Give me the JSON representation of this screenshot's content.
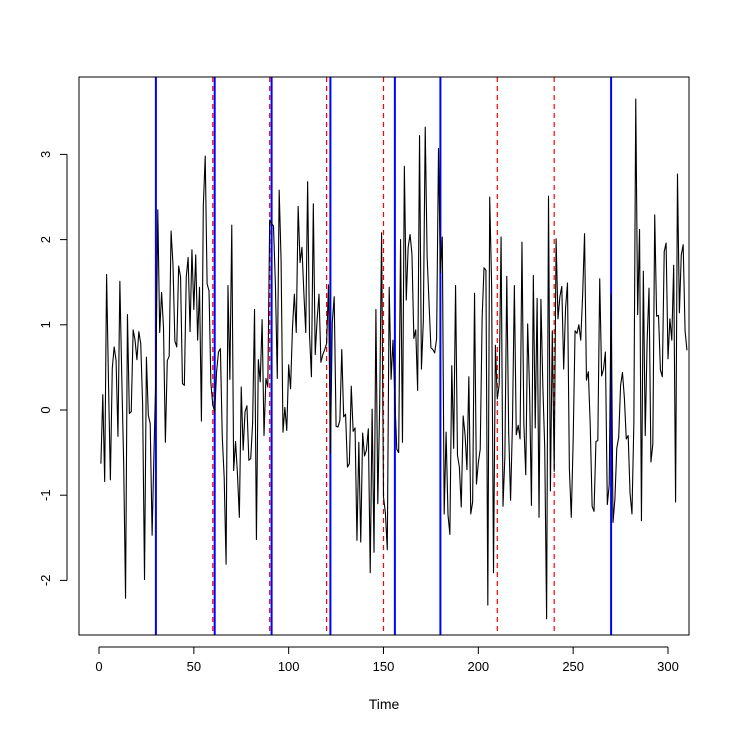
{
  "chart_data": {
    "type": "line",
    "title": "",
    "xlabel": "Time",
    "ylabel": "",
    "xlim": [
      0,
      300
    ],
    "ylim": [
      -2.5,
      3.5
    ],
    "grid": false,
    "x_ticks": [
      0,
      50,
      100,
      150,
      200,
      250,
      300
    ],
    "x_tick_labels": [
      "0",
      "50",
      "100",
      "150",
      "200",
      "250",
      "300"
    ],
    "y_ticks": [
      -2,
      -1,
      0,
      1,
      2,
      3
    ],
    "y_tick_labels": [
      "-2",
      "-1",
      "0",
      "1",
      "2",
      "3"
    ],
    "series": [
      {
        "color": "#000000",
        "x_start": 1,
        "x_step": 1,
        "values": [
          -0.63,
          0.18,
          -0.84,
          1.59,
          0.33,
          -0.82,
          0.49,
          0.74,
          0.58,
          -0.31,
          1.51,
          0.39,
          -0.62,
          -2.21,
          1.12,
          -0.04,
          -0.02,
          0.94,
          0.82,
          0.59,
          0.92,
          0.78,
          0.07,
          -1.99,
          0.62,
          -0.06,
          -0.16,
          -1.47,
          -0.48,
          0.42,
          2.35,
          0.91,
          1.38,
          0.97,
          -0.38,
          0.58,
          0.63,
          2.1,
          1.71,
          0.81,
          0.74,
          1.69,
          1.56,
          0.31,
          0.29,
          1.56,
          1.79,
          0.92,
          1.88,
          1.18,
          1.82,
          0.82,
          1.44,
          -0.13,
          2.4,
          2.98,
          1.48,
          1.4,
          0.31,
          0.06,
          -0.02,
          0.45,
          0.68,
          0.72,
          -0.32,
          -0.79,
          -1.81,
          1.46,
          0.36,
          2.17,
          -0.71,
          -0.37,
          -0.75,
          -1.26,
          0.27,
          -0.47,
          -0.02,
          0.05,
          -0.59,
          -0.57,
          -0.15,
          1.18,
          -1.52,
          0.59,
          0.33,
          1.06,
          -0.3,
          0.37,
          0.27,
          2.23,
          2.19,
          2.16,
          1.48,
          0.37,
          2.58,
          1.76,
          -0.26,
          0.03,
          -0.24,
          0.53,
          0.25,
          0.96,
          1.36,
          0.91,
          2.39,
          1.73,
          1.91,
          1.38,
          0.91,
          2.68,
          0.88,
          0.39,
          2.42,
          0.65,
          1.06,
          1.36,
          0.56,
          0.65,
          0.71,
          0.78,
          1.47,
          -0.51,
          1.03,
          1.33,
          -0.19,
          -0.2,
          -0.12,
          0.71,
          -0.08,
          -0.05,
          -0.67,
          -0.63,
          0.28,
          -0.25,
          -0.21,
          -1.53,
          -0.38,
          -1.55,
          -0.27,
          -0.54,
          -0.47,
          -0.22,
          -1.91,
          0.01,
          -1.67,
          1.18,
          -1.1,
          0.07,
          2.08,
          -1.02,
          -1.21,
          -1.64,
          1.44,
          0.36,
          0.82,
          0.12,
          -0.46,
          -0.5,
          2.0,
          -0.38,
          2.86,
          1.29,
          1.91,
          2.06,
          1.83,
          0.84,
          0.94,
          0.23,
          3.22,
          0.48,
          1.04,
          3.32,
          1.8,
          1.26,
          0.73,
          0.71,
          0.67,
          0.84,
          3.07,
          1.61,
          2.03,
          -1.22,
          -0.26,
          -1.23,
          -1.46,
          0.52,
          -0.45,
          1.46,
          -0.53,
          -0.67,
          -1.14,
          -0.07,
          -0.29,
          -0.7,
          0.39,
          -1.22,
          -1.08,
          1.37,
          -0.87,
          -0.62,
          -0.46,
          1.08,
          1.67,
          1.64,
          -2.29,
          2.5,
          1.47,
          -1.91,
          0.76,
          0.13,
          0.3,
          2.03,
          -1.13,
          -0.54,
          1.57,
          -0.26,
          -1.06,
          -0.15,
          1.46,
          -0.29,
          -0.18,
          -0.34,
          1.97,
          -0.16,
          -0.76,
          1.01,
          0.24,
          -1.12,
          1.58,
          -0.21,
          1.31,
          -1.26,
          1.3,
          0.29,
          -0.44,
          -2.45,
          2.51,
          -0.95,
          0.93,
          -0.72,
          2.01,
          1.07,
          1.33,
          1.45,
          0.48,
          1.2,
          1.49,
          -0.69,
          -1.26,
          -0.36,
          0.93,
          0.9,
          1.0,
          0.82,
          1.35,
          2.07,
          0.35,
          0.45,
          -0.18,
          -1.13,
          -1.19,
          -0.37,
          -0.36,
          1.54,
          0.4,
          0.48,
          0.68,
          -1.11,
          -0.88,
          1.36,
          -1.32,
          -1.05,
          -0.45,
          -0.32,
          0.29,
          0.44,
          0.14,
          -0.34,
          -0.3,
          -0.98,
          -1.22,
          -0.15,
          3.65,
          1.12,
          2.12,
          -1.3,
          1.63,
          -0.3,
          0.81,
          1.43,
          -0.61,
          -0.4,
          2.29,
          1.1,
          1.11,
          0.47,
          0.39,
          1.86,
          1.96,
          0.6,
          1.07,
          0.82,
          1.7,
          -1.08,
          2.77,
          1.14,
          1.82,
          1.94,
          0.93,
          0.7
        ]
      }
    ],
    "vlines": [
      {
        "style": "solid",
        "color": "#0000ff",
        "x": [
          30,
          61,
          91,
          122,
          156,
          180,
          270
        ]
      },
      {
        "style": "dashed",
        "color": "#ff0000",
        "x": [
          60,
          90,
          120,
          150,
          210,
          240
        ]
      }
    ]
  }
}
